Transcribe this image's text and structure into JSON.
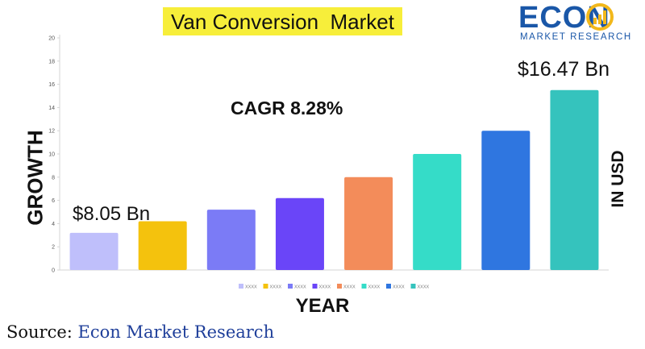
{
  "title": "Van Conversion  Market",
  "logo": {
    "word": "ECON",
    "subtitle": "MARKET RESEARCH",
    "color": "#1a57a8",
    "accent": "#f2b81b"
  },
  "annotations": {
    "cagr": "CAGR 8.28%",
    "start_value": "$8.05 Bn",
    "end_value": "$16.47 Bn"
  },
  "source": {
    "prefix": "Source: ",
    "name": "Econ Market Research"
  },
  "chart_data": {
    "type": "bar",
    "xlabel": "YEAR",
    "ylabel": "GROWTH",
    "unit_label": "IN USD",
    "ylim": [
      0,
      20
    ],
    "yticks": [
      0,
      2,
      4,
      6,
      8,
      10,
      12,
      14,
      16,
      18,
      20
    ],
    "grid": false,
    "legend_position": "bottom",
    "categories": [
      "XXXX",
      "XXXX",
      "XXXX",
      "XXXX",
      "XXXX",
      "XXXX",
      "XXXX",
      "XXXX"
    ],
    "values": [
      3.2,
      4.2,
      5.2,
      6.2,
      8.0,
      10.0,
      12.0,
      15.5
    ],
    "colors": [
      "#bfbffb",
      "#f4c20d",
      "#7b7bf6",
      "#6a45f8",
      "#f38c5a",
      "#35dcc8",
      "#2f76e0",
      "#35c3bd"
    ]
  }
}
